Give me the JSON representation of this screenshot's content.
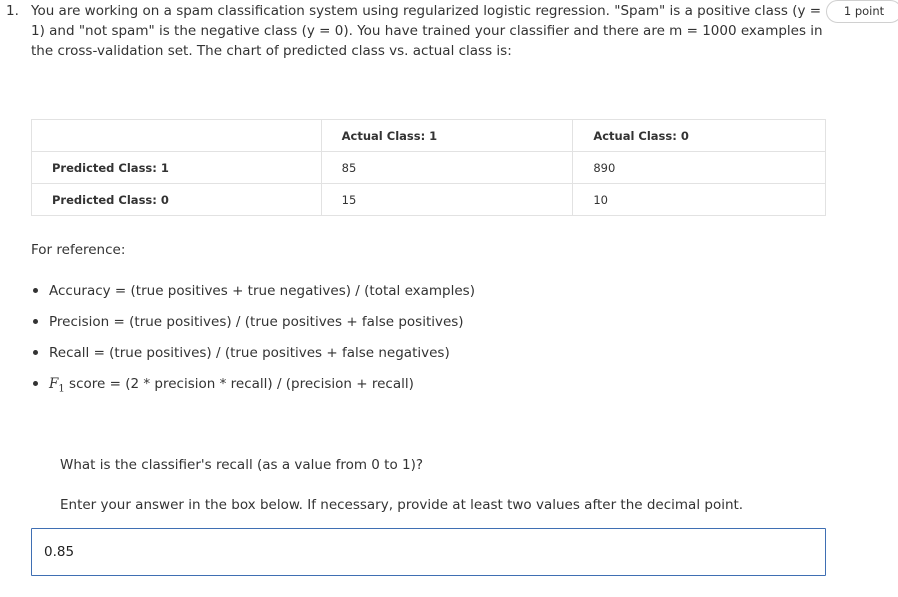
{
  "question": {
    "number": "1.",
    "text": "You are working on a spam classification system using regularized logistic regression. \"Spam\" is a positive class (y = 1) and \"not spam\" is the negative class (y = 0). You have trained your classifier and there are m = 1000 examples in the cross-validation set. The chart of predicted class vs. actual class is:",
    "points": "1 point"
  },
  "confusion_table": {
    "headers": [
      "",
      "Actual Class: 1",
      "Actual Class: 0"
    ],
    "rows": [
      {
        "label": "Predicted Class: 1",
        "actual1": "85",
        "actual0": "890"
      },
      {
        "label": "Predicted Class: 0",
        "actual1": "15",
        "actual0": "10"
      }
    ]
  },
  "reference": {
    "heading": "For reference:",
    "accuracy": "Accuracy = (true positives + true negatives) / (total examples)",
    "precision": "Precision = (true positives) / (true positives + false positives)",
    "recall": "Recall = (true positives) / (true positives + false negatives)",
    "f1_symbol": "F",
    "f1_subscript": "1",
    "f1_formula": "score = (2 * precision * recall) / (precision + recall)"
  },
  "prompt": {
    "question": "What is the classifier's recall (as a value from 0 to 1)?",
    "instruction": "Enter your answer in the box below. If necessary, provide at least two values after the decimal point."
  },
  "answer": {
    "value": "0.85"
  }
}
